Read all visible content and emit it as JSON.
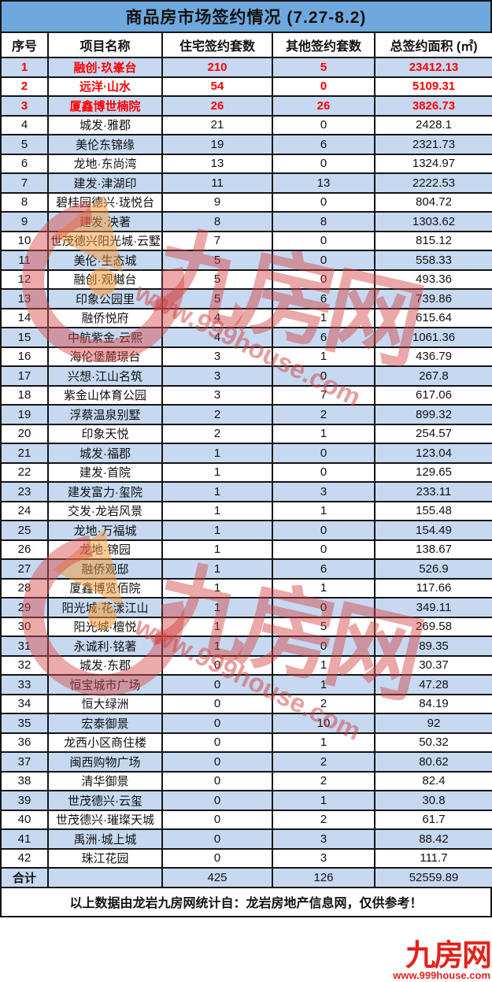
{
  "title": "商品房市场签约情况 (7.27-8.2)",
  "chart_data": {
    "type": "table",
    "title": "商品房市场签约情况 (7.27-8.2)",
    "columns": [
      "序号",
      "项目名称",
      "住宅签约套数",
      "其他签约套数",
      "总签约面积 (㎡)"
    ],
    "rows": [
      {
        "no": "1",
        "name": "融创·玖峯台",
        "res": "210",
        "other": "5",
        "area": "23412.13",
        "highlight": true
      },
      {
        "no": "2",
        "name": "远洋·山水",
        "res": "54",
        "other": "0",
        "area": "5109.31",
        "highlight": true
      },
      {
        "no": "3",
        "name": "厦鑫博世楠院",
        "res": "26",
        "other": "26",
        "area": "3826.73",
        "highlight": true
      },
      {
        "no": "4",
        "name": "城发·雅郡",
        "res": "21",
        "other": "0",
        "area": "2428.1",
        "highlight": false
      },
      {
        "no": "5",
        "name": "美伦东锦缘",
        "res": "19",
        "other": "6",
        "area": "2321.73",
        "highlight": false
      },
      {
        "no": "6",
        "name": "龙地·东尚湾",
        "res": "13",
        "other": "0",
        "area": "1324.97",
        "highlight": false
      },
      {
        "no": "7",
        "name": "建发·津湖印",
        "res": "11",
        "other": "13",
        "area": "2222.53",
        "highlight": false
      },
      {
        "no": "8",
        "name": "碧桂园德兴·珑悦台",
        "res": "9",
        "other": "0",
        "area": "804.72",
        "highlight": false
      },
      {
        "no": "9",
        "name": "建发·泱著",
        "res": "8",
        "other": "8",
        "area": "1303.62",
        "highlight": false
      },
      {
        "no": "10",
        "name": "世茂德兴阳光城·云墅",
        "res": "7",
        "other": "0",
        "area": "815.12",
        "highlight": false
      },
      {
        "no": "11",
        "name": "美伦·生态城",
        "res": "5",
        "other": "0",
        "area": "558.33",
        "highlight": false
      },
      {
        "no": "12",
        "name": "融创·观樾台",
        "res": "5",
        "other": "0",
        "area": "493.36",
        "highlight": false
      },
      {
        "no": "13",
        "name": "印象公园里",
        "res": "5",
        "other": "6",
        "area": "739.86",
        "highlight": false
      },
      {
        "no": "14",
        "name": "融侨悦府",
        "res": "4",
        "other": "1",
        "area": "615.64",
        "highlight": false
      },
      {
        "no": "15",
        "name": "中航紫金·云熙",
        "res": "4",
        "other": "6",
        "area": "1061.36",
        "highlight": false
      },
      {
        "no": "16",
        "name": "海伦堡麓璟台",
        "res": "3",
        "other": "1",
        "area": "436.79",
        "highlight": false
      },
      {
        "no": "17",
        "name": "兴想·江山名筑",
        "res": "3",
        "other": "0",
        "area": "267.8",
        "highlight": false
      },
      {
        "no": "18",
        "name": "紫金山体育公园",
        "res": "3",
        "other": "7",
        "area": "617.06",
        "highlight": false
      },
      {
        "no": "19",
        "name": "浮蔡温泉别墅",
        "res": "2",
        "other": "2",
        "area": "899.32",
        "highlight": false
      },
      {
        "no": "20",
        "name": "印象天悦",
        "res": "2",
        "other": "1",
        "area": "254.57",
        "highlight": false
      },
      {
        "no": "21",
        "name": "城发·福郡",
        "res": "1",
        "other": "0",
        "area": "123.04",
        "highlight": false
      },
      {
        "no": "22",
        "name": "建发·首院",
        "res": "1",
        "other": "0",
        "area": "129.65",
        "highlight": false
      },
      {
        "no": "23",
        "name": "建发富力·玺院",
        "res": "1",
        "other": "3",
        "area": "233.11",
        "highlight": false
      },
      {
        "no": "24",
        "name": "交发·龙岩风景",
        "res": "1",
        "other": "1",
        "area": "155.48",
        "highlight": false
      },
      {
        "no": "25",
        "name": "龙地·万福城",
        "res": "1",
        "other": "0",
        "area": "154.49",
        "highlight": false
      },
      {
        "no": "26",
        "name": "龙地·锦园",
        "res": "1",
        "other": "0",
        "area": "138.67",
        "highlight": false
      },
      {
        "no": "27",
        "name": "融侨观邸",
        "res": "1",
        "other": "6",
        "area": "526.9",
        "highlight": false
      },
      {
        "no": "28",
        "name": "厦鑫博览佰院",
        "res": "1",
        "other": "1",
        "area": "117.66",
        "highlight": false
      },
      {
        "no": "29",
        "name": "阳光城·花漾江山",
        "res": "1",
        "other": "0",
        "area": "349.11",
        "highlight": false
      },
      {
        "no": "30",
        "name": "阳光城·檀悦",
        "res": "1",
        "other": "5",
        "area": "269.58",
        "highlight": false
      },
      {
        "no": "31",
        "name": "永诚利·铭著",
        "res": "1",
        "other": "0",
        "area": "89.35",
        "highlight": false
      },
      {
        "no": "32",
        "name": "城发·东郡",
        "res": "0",
        "other": "1",
        "area": "30.37",
        "highlight": false
      },
      {
        "no": "33",
        "name": "恒宝城市广场",
        "res": "0",
        "other": "1",
        "area": "47.28",
        "highlight": false
      },
      {
        "no": "34",
        "name": "恒大绿洲",
        "res": "0",
        "other": "2",
        "area": "84.19",
        "highlight": false
      },
      {
        "no": "35",
        "name": "宏泰御景",
        "res": "0",
        "other": "10",
        "area": "92",
        "highlight": false
      },
      {
        "no": "36",
        "name": "龙西小区商住楼",
        "res": "0",
        "other": "1",
        "area": "50.32",
        "highlight": false
      },
      {
        "no": "37",
        "name": "闽西购物广场",
        "res": "0",
        "other": "2",
        "area": "80.62",
        "highlight": false
      },
      {
        "no": "38",
        "name": "清华御景",
        "res": "0",
        "other": "2",
        "area": "82.4",
        "highlight": false
      },
      {
        "no": "39",
        "name": "世茂德兴·云玺",
        "res": "0",
        "other": "1",
        "area": "30.8",
        "highlight": false
      },
      {
        "no": "40",
        "name": "世茂德兴·璀璨天城",
        "res": "0",
        "other": "2",
        "area": "61.7",
        "highlight": false
      },
      {
        "no": "41",
        "name": "禹洲·城上城",
        "res": "0",
        "other": "3",
        "area": "88.42",
        "highlight": false
      },
      {
        "no": "42",
        "name": "珠江花园",
        "res": "0",
        "other": "3",
        "area": "111.7",
        "highlight": false
      }
    ],
    "total": {
      "label": "合计",
      "name": "",
      "res": "425",
      "other": "126",
      "area": "52559.89"
    }
  },
  "footer": {
    "note": "以上数据由龙岩九房网统计自：龙岩房地产信息网，仅供参考！"
  },
  "watermark": {
    "brand": "九房网",
    "url": "www.999house.com"
  },
  "colors": {
    "title_bg": "#6FA8DC",
    "stripe_bg": "#C6D9F1",
    "highlight_text": "#FF0000",
    "border": "#141414",
    "watermark_red": "#D33E3E",
    "logo_red": "#E2231A"
  }
}
